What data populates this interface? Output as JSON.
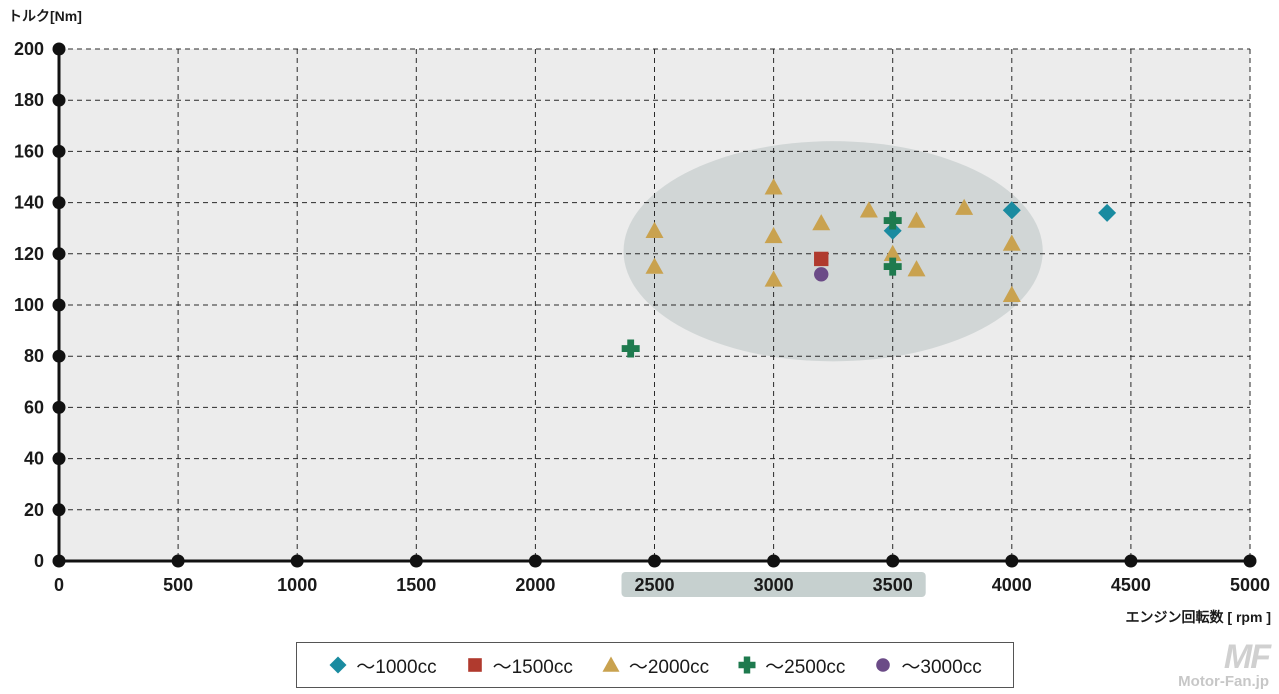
{
  "chart_data": {
    "type": "scatter",
    "title": "",
    "ylabel": "トルク[Nm]",
    "xlabel": "エンジン回転数 [ rpm ]",
    "xlim": [
      0,
      5000
    ],
    "ylim": [
      0,
      200
    ],
    "x_ticks": [
      0,
      500,
      1000,
      1500,
      2000,
      2500,
      3000,
      3500,
      4000,
      4500,
      5000
    ],
    "y_ticks": [
      0,
      20,
      40,
      60,
      80,
      100,
      120,
      140,
      160,
      180,
      200
    ],
    "grid": true,
    "highlight_x_range": [
      2500,
      3500
    ],
    "highlight_region": {
      "center": [
        3250,
        121
      ],
      "semi_axes": [
        880,
        43
      ]
    },
    "legend_position": "bottom",
    "series": [
      {
        "name": "〜1000cc",
        "marker": "diamond",
        "color": "#1a8ba0",
        "points": [
          [
            3500,
            129
          ],
          [
            4000,
            137
          ],
          [
            4400,
            136
          ]
        ]
      },
      {
        "name": "〜1500cc",
        "marker": "square",
        "color": "#b03a2e",
        "points": [
          [
            3200,
            118
          ]
        ]
      },
      {
        "name": "〜2000cc",
        "marker": "triangle",
        "color": "#c9a24f",
        "points": [
          [
            2500,
            129
          ],
          [
            2500,
            115
          ],
          [
            3000,
            146
          ],
          [
            3000,
            127
          ],
          [
            3000,
            110
          ],
          [
            3200,
            132
          ],
          [
            3400,
            137
          ],
          [
            3500,
            120
          ],
          [
            3600,
            133
          ],
          [
            3600,
            114
          ],
          [
            3800,
            138
          ],
          [
            4000,
            124
          ],
          [
            4000,
            104
          ]
        ]
      },
      {
        "name": "〜2500cc",
        "marker": "cross",
        "color": "#1e7a4e",
        "points": [
          [
            2400,
            83
          ],
          [
            3500,
            133
          ],
          [
            3500,
            115
          ]
        ]
      },
      {
        "name": "〜3000cc",
        "marker": "circle",
        "color": "#6b4b87",
        "points": [
          [
            3200,
            112
          ]
        ]
      }
    ]
  },
  "watermark": {
    "logo": "MF",
    "site": "Motor-Fan.jp"
  }
}
